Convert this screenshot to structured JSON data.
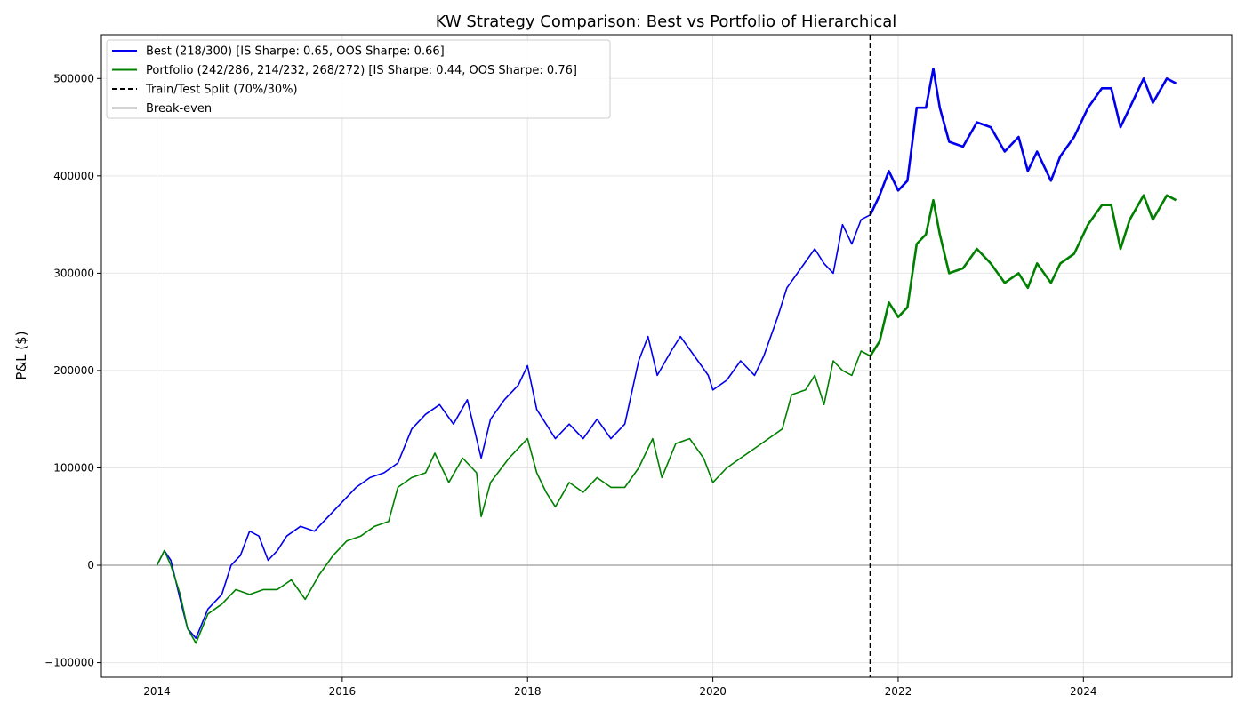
{
  "chart_data": {
    "type": "line",
    "title": "KW Strategy Comparison: Best vs Portfolio of Hierarchical",
    "xlabel": "",
    "ylabel": "P&L ($)",
    "xlim": [
      2013.4,
      2025.6
    ],
    "ylim": [
      -115000,
      545000
    ],
    "grid": true,
    "legend_position": "top-left",
    "x_ticks": [
      {
        "value": 2014,
        "label": "2014"
      },
      {
        "value": 2016,
        "label": "2016"
      },
      {
        "value": 2018,
        "label": "2018"
      },
      {
        "value": 2020,
        "label": "2020"
      },
      {
        "value": 2022,
        "label": "2022"
      },
      {
        "value": 2024,
        "label": "2024"
      }
    ],
    "y_ticks": [
      {
        "value": -100000,
        "label": "−100000"
      },
      {
        "value": 0,
        "label": "0"
      },
      {
        "value": 100000,
        "label": "100000"
      },
      {
        "value": 200000,
        "label": "200000"
      },
      {
        "value": 300000,
        "label": "300000"
      },
      {
        "value": 400000,
        "label": "400000"
      },
      {
        "value": 500000,
        "label": "500000"
      }
    ],
    "split_x": 2021.7,
    "split_split_index_note": "",
    "series": [
      {
        "name": "Best (218/300) [IS Sharpe: 0.65, OOS Sharpe: 0.66]",
        "color": "#0000ee",
        "points": [
          [
            2014.0,
            0
          ],
          [
            2014.08,
            15000
          ],
          [
            2014.15,
            5000
          ],
          [
            2014.25,
            -35000
          ],
          [
            2014.33,
            -65000
          ],
          [
            2014.42,
            -75000
          ],
          [
            2014.55,
            -45000
          ],
          [
            2014.7,
            -30000
          ],
          [
            2014.8,
            0
          ],
          [
            2014.9,
            10000
          ],
          [
            2015.0,
            35000
          ],
          [
            2015.1,
            30000
          ],
          [
            2015.2,
            5000
          ],
          [
            2015.3,
            15000
          ],
          [
            2015.4,
            30000
          ],
          [
            2015.55,
            40000
          ],
          [
            2015.7,
            35000
          ],
          [
            2015.85,
            50000
          ],
          [
            2016.0,
            65000
          ],
          [
            2016.15,
            80000
          ],
          [
            2016.3,
            90000
          ],
          [
            2016.45,
            95000
          ],
          [
            2016.6,
            105000
          ],
          [
            2016.75,
            140000
          ],
          [
            2016.9,
            155000
          ],
          [
            2017.05,
            165000
          ],
          [
            2017.2,
            145000
          ],
          [
            2017.35,
            170000
          ],
          [
            2017.5,
            110000
          ],
          [
            2017.6,
            150000
          ],
          [
            2017.75,
            170000
          ],
          [
            2017.9,
            185000
          ],
          [
            2018.0,
            205000
          ],
          [
            2018.1,
            160000
          ],
          [
            2018.2,
            145000
          ],
          [
            2018.3,
            130000
          ],
          [
            2018.45,
            145000
          ],
          [
            2018.6,
            130000
          ],
          [
            2018.75,
            150000
          ],
          [
            2018.9,
            130000
          ],
          [
            2019.05,
            145000
          ],
          [
            2019.2,
            210000
          ],
          [
            2019.3,
            235000
          ],
          [
            2019.4,
            195000
          ],
          [
            2019.55,
            220000
          ],
          [
            2019.65,
            235000
          ],
          [
            2019.8,
            215000
          ],
          [
            2019.95,
            195000
          ],
          [
            2020.0,
            180000
          ],
          [
            2020.15,
            190000
          ],
          [
            2020.3,
            210000
          ],
          [
            2020.45,
            195000
          ],
          [
            2020.55,
            215000
          ],
          [
            2020.7,
            255000
          ],
          [
            2020.8,
            285000
          ],
          [
            2020.95,
            305000
          ],
          [
            2021.1,
            325000
          ],
          [
            2021.2,
            310000
          ],
          [
            2021.3,
            300000
          ],
          [
            2021.4,
            350000
          ],
          [
            2021.5,
            330000
          ],
          [
            2021.6,
            355000
          ],
          [
            2021.7,
            360000
          ],
          [
            2021.8,
            380000
          ],
          [
            2021.9,
            405000
          ],
          [
            2022.0,
            385000
          ],
          [
            2022.1,
            395000
          ],
          [
            2022.2,
            470000
          ],
          [
            2022.3,
            470000
          ],
          [
            2022.38,
            510000
          ],
          [
            2022.45,
            470000
          ],
          [
            2022.55,
            435000
          ],
          [
            2022.7,
            430000
          ],
          [
            2022.85,
            455000
          ],
          [
            2023.0,
            450000
          ],
          [
            2023.15,
            425000
          ],
          [
            2023.3,
            440000
          ],
          [
            2023.4,
            405000
          ],
          [
            2023.5,
            425000
          ],
          [
            2023.65,
            395000
          ],
          [
            2023.75,
            420000
          ],
          [
            2023.9,
            440000
          ],
          [
            2024.05,
            470000
          ],
          [
            2024.2,
            490000
          ],
          [
            2024.3,
            490000
          ],
          [
            2024.4,
            450000
          ],
          [
            2024.5,
            470000
          ],
          [
            2024.65,
            500000
          ],
          [
            2024.75,
            475000
          ],
          [
            2024.9,
            500000
          ],
          [
            2025.0,
            495000
          ]
        ]
      },
      {
        "name": "Portfolio (242/286, 214/232, 268/272) [IS Sharpe: 0.44, OOS Sharpe: 0.76]",
        "color": "#008000",
        "points": [
          [
            2014.0,
            0
          ],
          [
            2014.08,
            15000
          ],
          [
            2014.15,
            0
          ],
          [
            2014.25,
            -30000
          ],
          [
            2014.33,
            -65000
          ],
          [
            2014.42,
            -80000
          ],
          [
            2014.55,
            -50000
          ],
          [
            2014.7,
            -40000
          ],
          [
            2014.85,
            -25000
          ],
          [
            2015.0,
            -30000
          ],
          [
            2015.15,
            -25000
          ],
          [
            2015.3,
            -25000
          ],
          [
            2015.45,
            -15000
          ],
          [
            2015.6,
            -35000
          ],
          [
            2015.75,
            -10000
          ],
          [
            2015.9,
            10000
          ],
          [
            2016.05,
            25000
          ],
          [
            2016.2,
            30000
          ],
          [
            2016.35,
            40000
          ],
          [
            2016.5,
            45000
          ],
          [
            2016.6,
            80000
          ],
          [
            2016.75,
            90000
          ],
          [
            2016.9,
            95000
          ],
          [
            2017.0,
            115000
          ],
          [
            2017.15,
            85000
          ],
          [
            2017.3,
            110000
          ],
          [
            2017.45,
            95000
          ],
          [
            2017.5,
            50000
          ],
          [
            2017.6,
            85000
          ],
          [
            2017.8,
            110000
          ],
          [
            2018.0,
            130000
          ],
          [
            2018.1,
            95000
          ],
          [
            2018.2,
            75000
          ],
          [
            2018.3,
            60000
          ],
          [
            2018.45,
            85000
          ],
          [
            2018.6,
            75000
          ],
          [
            2018.75,
            90000
          ],
          [
            2018.9,
            80000
          ],
          [
            2019.05,
            80000
          ],
          [
            2019.2,
            100000
          ],
          [
            2019.35,
            130000
          ],
          [
            2019.45,
            90000
          ],
          [
            2019.6,
            125000
          ],
          [
            2019.75,
            130000
          ],
          [
            2019.9,
            110000
          ],
          [
            2020.0,
            85000
          ],
          [
            2020.15,
            100000
          ],
          [
            2020.3,
            110000
          ],
          [
            2020.45,
            120000
          ],
          [
            2020.6,
            130000
          ],
          [
            2020.75,
            140000
          ],
          [
            2020.85,
            175000
          ],
          [
            2021.0,
            180000
          ],
          [
            2021.1,
            195000
          ],
          [
            2021.2,
            165000
          ],
          [
            2021.3,
            210000
          ],
          [
            2021.4,
            200000
          ],
          [
            2021.5,
            195000
          ],
          [
            2021.6,
            220000
          ],
          [
            2021.7,
            215000
          ],
          [
            2021.8,
            230000
          ],
          [
            2021.9,
            270000
          ],
          [
            2022.0,
            255000
          ],
          [
            2022.1,
            265000
          ],
          [
            2022.2,
            330000
          ],
          [
            2022.3,
            340000
          ],
          [
            2022.38,
            375000
          ],
          [
            2022.45,
            340000
          ],
          [
            2022.55,
            300000
          ],
          [
            2022.7,
            305000
          ],
          [
            2022.85,
            325000
          ],
          [
            2023.0,
            310000
          ],
          [
            2023.15,
            290000
          ],
          [
            2023.3,
            300000
          ],
          [
            2023.4,
            285000
          ],
          [
            2023.5,
            310000
          ],
          [
            2023.65,
            290000
          ],
          [
            2023.75,
            310000
          ],
          [
            2023.9,
            320000
          ],
          [
            2024.05,
            350000
          ],
          [
            2024.2,
            370000
          ],
          [
            2024.3,
            370000
          ],
          [
            2024.4,
            325000
          ],
          [
            2024.5,
            355000
          ],
          [
            2024.65,
            380000
          ],
          [
            2024.75,
            355000
          ],
          [
            2024.9,
            380000
          ],
          [
            2025.0,
            375000
          ]
        ]
      }
    ],
    "legend": [
      {
        "label": "Best (218/300) [IS Sharpe: 0.65, OOS Sharpe: 0.66]",
        "color": "#0000ee",
        "style": "solid"
      },
      {
        "label": "Portfolio (242/286, 214/232, 268/272) [IS Sharpe: 0.44, OOS Sharpe: 0.76]",
        "color": "#008000",
        "style": "solid"
      },
      {
        "label": "Train/Test Split (70%/30%)",
        "color": "#000000",
        "style": "dashed"
      },
      {
        "label": "Break-even",
        "color": "#aaaaaa",
        "style": "solid"
      }
    ]
  }
}
